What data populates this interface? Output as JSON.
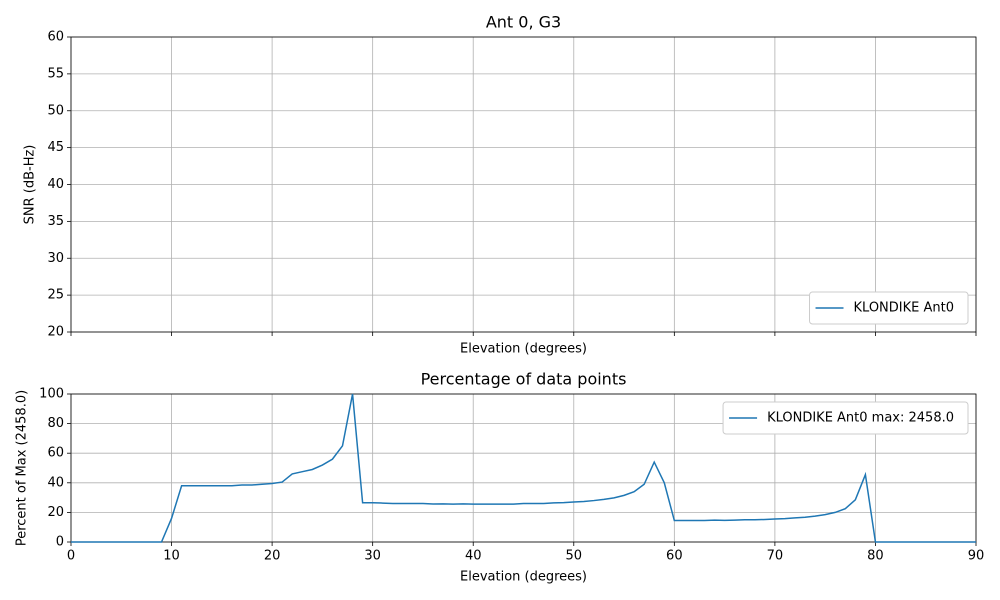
{
  "chart_data": [
    {
      "type": "line",
      "title": "Ant 0, G3",
      "xlabel": "Elevation (degrees)",
      "ylabel": "SNR (dB-Hz)",
      "xlim": [
        0,
        90
      ],
      "xticks": [
        0,
        10,
        20,
        30,
        40,
        50,
        60,
        70,
        80,
        90
      ],
      "show_xtick_labels": false,
      "ylim": [
        20,
        60
      ],
      "yticks": [
        20,
        25,
        30,
        35,
        40,
        45,
        50,
        55,
        60
      ],
      "grid": true,
      "legend": "lower right",
      "x": [],
      "series": [
        {
          "name": "KLONDIKE Ant0",
          "color": "#1f77b4",
          "values": []
        }
      ]
    },
    {
      "type": "line",
      "title": "Percentage of data points",
      "xlabel": "Elevation (degrees)",
      "ylabel": "Percent of Max (2458.0)",
      "xlim": [
        0,
        90
      ],
      "xticks": [
        0,
        10,
        20,
        30,
        40,
        50,
        60,
        70,
        80,
        90
      ],
      "show_xtick_labels": true,
      "ylim": [
        0,
        100
      ],
      "yticks": [
        0,
        20,
        40,
        60,
        80,
        100
      ],
      "grid": true,
      "legend": "upper right",
      "x": [
        0,
        1,
        2,
        3,
        4,
        5,
        6,
        7,
        8,
        9,
        10,
        11,
        12,
        13,
        14,
        15,
        16,
        17,
        18,
        19,
        20,
        21,
        22,
        23,
        24,
        25,
        26,
        27,
        28,
        29,
        30,
        31,
        32,
        33,
        34,
        35,
        36,
        37,
        38,
        39,
        40,
        41,
        42,
        43,
        44,
        45,
        46,
        47,
        48,
        49,
        50,
        51,
        52,
        53,
        54,
        55,
        56,
        57,
        58,
        59,
        60,
        61,
        62,
        63,
        64,
        65,
        66,
        67,
        68,
        69,
        70,
        71,
        72,
        73,
        74,
        75,
        76,
        77,
        78,
        79,
        80,
        81,
        82,
        83,
        84,
        85,
        86,
        87,
        88,
        89,
        90
      ],
      "series": [
        {
          "name": "KLONDIKE Ant0 max: 2458.0",
          "color": "#1f77b4",
          "values": [
            0,
            0,
            0,
            0,
            0,
            0,
            0,
            0,
            0,
            0,
            16,
            38,
            38,
            38,
            38,
            38,
            38,
            38.5,
            38.5,
            39,
            39.5,
            40.5,
            46,
            47.5,
            49,
            52,
            56,
            65,
            100,
            26.5,
            26.5,
            26.3,
            26,
            26,
            26,
            26,
            25.7,
            25.8,
            25.6,
            25.8,
            25.6,
            25.6,
            25.6,
            25.6,
            25.6,
            26,
            26,
            26,
            26.4,
            26.6,
            27,
            27.4,
            28,
            28.8,
            29.8,
            31.5,
            34,
            39,
            54,
            40,
            14.5,
            14.5,
            14.5,
            14.5,
            14.8,
            14.6,
            14.8,
            15,
            15,
            15.2,
            15.5,
            15.8,
            16.3,
            16.7,
            17.5,
            18.5,
            20,
            22.5,
            28.5,
            45.5,
            0,
            0,
            0,
            0,
            0,
            0,
            0,
            0,
            0,
            0,
            0
          ]
        }
      ]
    }
  ]
}
